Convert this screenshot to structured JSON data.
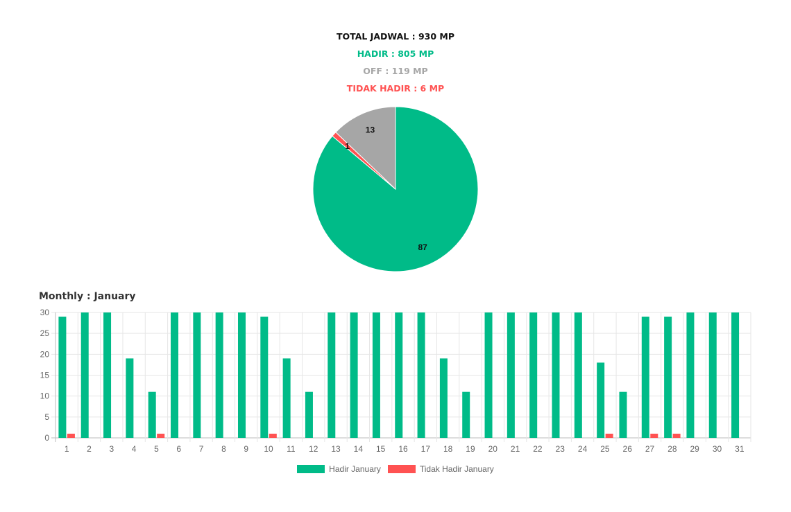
{
  "summary": {
    "total": "TOTAL JADWAL : 930 MP",
    "hadir": "HADIR : 805 MP",
    "off": "OFF : 119 MP",
    "tidak_hadir": "TIDAK HADIR : 6 MP"
  },
  "colors": {
    "hadir": "#00bb88",
    "off": "#a6a6a6",
    "tidak_hadir": "#ff5252",
    "text": "#111111"
  },
  "monthly_title": "Monthly : January",
  "chart_data": [
    {
      "type": "pie",
      "slices": [
        {
          "label": "Hadir",
          "value": 87,
          "color": "#00bb88"
        },
        {
          "label": "Tidak Hadir",
          "value": 1,
          "color": "#ff5252"
        },
        {
          "label": "Off",
          "value": 13,
          "color": "#a6a6a6"
        }
      ]
    },
    {
      "type": "bar",
      "categories": [
        "1",
        "2",
        "3",
        "4",
        "5",
        "6",
        "7",
        "8",
        "9",
        "10",
        "11",
        "12",
        "13",
        "14",
        "15",
        "16",
        "17",
        "18",
        "19",
        "20",
        "21",
        "22",
        "23",
        "24",
        "25",
        "26",
        "27",
        "28",
        "29",
        "30",
        "31"
      ],
      "series": [
        {
          "name": "Hadir January",
          "color": "#00bb88",
          "values": [
            29,
            30,
            30,
            19,
            11,
            30,
            30,
            30,
            30,
            29,
            19,
            11,
            30,
            30,
            30,
            30,
            30,
            19,
            11,
            30,
            30,
            30,
            30,
            30,
            18,
            11,
            29,
            29,
            30,
            30,
            30
          ]
        },
        {
          "name": "Tidak Hadir January",
          "color": "#ff5252",
          "values": [
            1,
            0,
            0,
            0,
            1,
            0,
            0,
            0,
            0,
            1,
            0,
            0,
            0,
            0,
            0,
            0,
            0,
            0,
            0,
            0,
            0,
            0,
            0,
            0,
            1,
            0,
            1,
            1,
            0,
            0,
            0
          ]
        }
      ],
      "ylim": [
        0,
        30
      ],
      "yticks": [
        0,
        5,
        10,
        15,
        20,
        25,
        30
      ],
      "grid": true,
      "legend": "bottom"
    }
  ]
}
